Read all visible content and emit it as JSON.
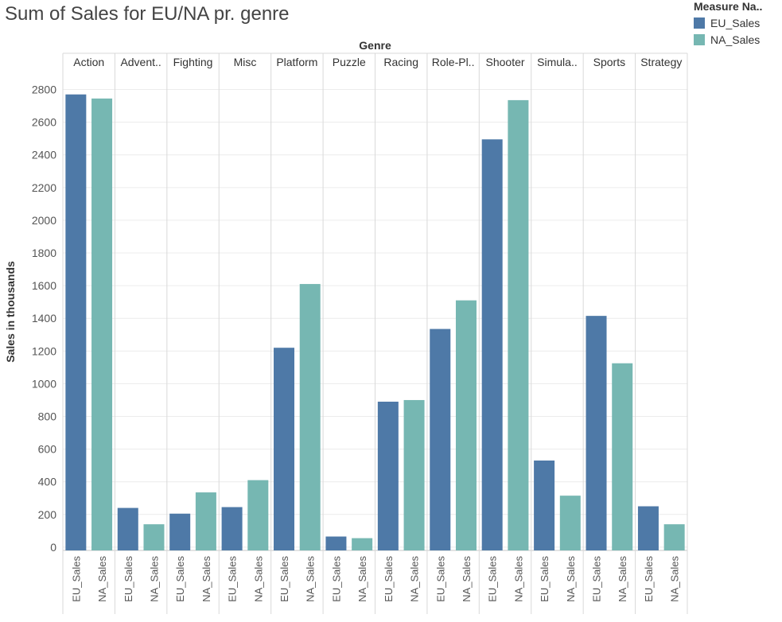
{
  "chart_data": {
    "type": "bar",
    "title": "Sum of Sales for EU/NA pr. genre",
    "column_header": "Genre",
    "ylabel": "Sales in thousands",
    "ylim": [
      -20,
      2900
    ],
    "yticks": [
      0,
      200,
      400,
      600,
      800,
      1000,
      1200,
      1400,
      1600,
      1800,
      2000,
      2200,
      2400,
      2600,
      2800
    ],
    "grid": true,
    "legend_title": "Measure Na..",
    "legend_position": "top-right",
    "categories": [
      "Action",
      "Advent..",
      "Fighting",
      "Misc",
      "Platform",
      "Puzzle",
      "Racing",
      "Role-Pl..",
      "Shooter",
      "Simula..",
      "Sports",
      "Strategy"
    ],
    "series": [
      {
        "name": "EU_Sales",
        "color": "#4e79a7",
        "values": [
          2770,
          240,
          205,
          245,
          1220,
          65,
          890,
          1335,
          2495,
          530,
          1415,
          250
        ]
      },
      {
        "name": "NA_Sales",
        "color": "#76b7b2",
        "values": [
          2745,
          140,
          335,
          410,
          1610,
          55,
          900,
          1510,
          2735,
          315,
          1125,
          140
        ]
      }
    ]
  }
}
